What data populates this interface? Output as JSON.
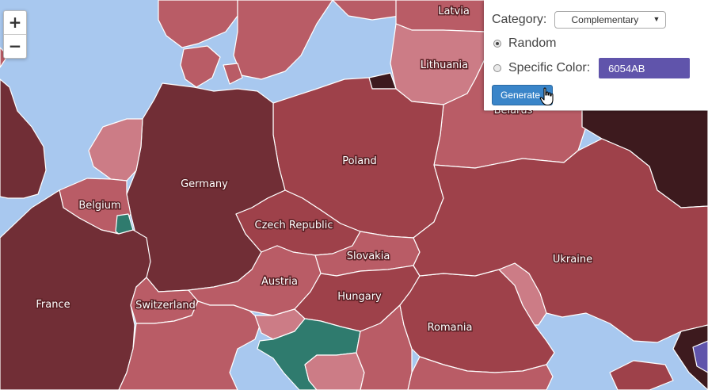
{
  "map": {
    "colors": {
      "water": "#a8c8ef",
      "darkest": "#3d1a1e",
      "dark": "#712e36",
      "medium": "#9e414a",
      "light": "#b95c66",
      "lighter": "#cc7c86",
      "teal": "#2f7b6e"
    },
    "labels": {
      "latvia": "Latvia",
      "lithuania": "Lithuania",
      "belarus": "Belarus",
      "poland": "Poland",
      "germany": "Germany",
      "belgium": "Belgium",
      "czech": "Czech Republic",
      "slovakia": "Slovakia",
      "austria": "Austria",
      "ukraine": "Ukraine",
      "hungary": "Hungary",
      "switzerland": "Switzerland",
      "france": "France",
      "romania": "Romania"
    }
  },
  "zoom": {
    "in_label": "+",
    "out_label": "−"
  },
  "panel": {
    "category_label": "Category:",
    "category_value": "Complementary",
    "caret": "▼",
    "random_label": "Random",
    "random_selected": true,
    "specific_label": "Specific Color:",
    "specific_hex": "6054AB",
    "specific_color": "#6054ab",
    "generate_label": "Generate"
  }
}
